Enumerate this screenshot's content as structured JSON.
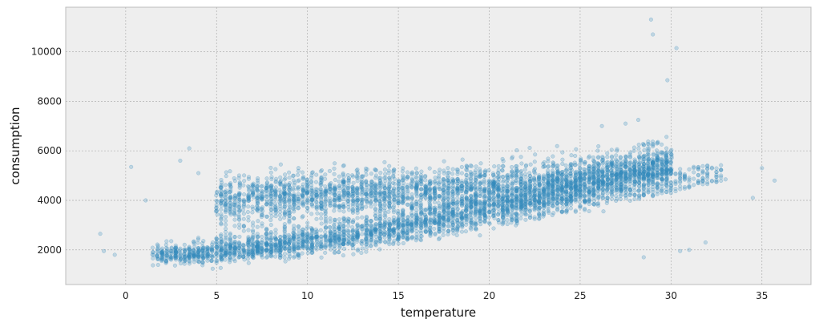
{
  "chart_data": {
    "type": "scatter",
    "title": "",
    "xlabel": "temperature",
    "ylabel": "consumption",
    "xlim": [
      -3.3,
      37.7
    ],
    "ylim": [
      600,
      11800
    ],
    "xticks": [
      0,
      5,
      10,
      15,
      20,
      25,
      30,
      35
    ],
    "yticks": [
      2000,
      4000,
      6000,
      8000,
      10000
    ],
    "grid": true,
    "legend": "none",
    "style": "bmh",
    "point_color": "#348ABD",
    "point_alpha": 0.25,
    "clusters": [
      {
        "x_range": [
          1.5,
          30.0
        ],
        "y_at_x_start": 1800,
        "y_at_x_end": 5500,
        "spread": 250,
        "description": "low band, rising with temperature"
      },
      {
        "x_range": [
          5.0,
          30.0
        ],
        "y_at_x_start": 4200,
        "y_at_x_end": 5500,
        "spread": 450,
        "description": "upper band"
      }
    ],
    "points": [
      {
        "x": -1.4,
        "y": 2650
      },
      {
        "x": -1.2,
        "y": 1950
      },
      {
        "x": -0.6,
        "y": 1800
      },
      {
        "x": 0.3,
        "y": 5350
      },
      {
        "x": 1.1,
        "y": 4000
      },
      {
        "x": 3.0,
        "y": 5600
      },
      {
        "x": 3.5,
        "y": 6100
      },
      {
        "x": 4.0,
        "y": 5100
      },
      {
        "x": 35.7,
        "y": 4800
      },
      {
        "x": 35.0,
        "y": 5300
      },
      {
        "x": 34.5,
        "y": 4100
      },
      {
        "x": 28.9,
        "y": 11300
      },
      {
        "x": 29.0,
        "y": 10700
      },
      {
        "x": 30.3,
        "y": 10150
      },
      {
        "x": 29.8,
        "y": 8850
      },
      {
        "x": 28.2,
        "y": 7250
      },
      {
        "x": 27.5,
        "y": 7100
      },
      {
        "x": 26.2,
        "y": 7000
      },
      {
        "x": 30.5,
        "y": 1950
      },
      {
        "x": 31.0,
        "y": 2000
      },
      {
        "x": 31.9,
        "y": 2300
      },
      {
        "x": 28.5,
        "y": 1700
      }
    ]
  }
}
